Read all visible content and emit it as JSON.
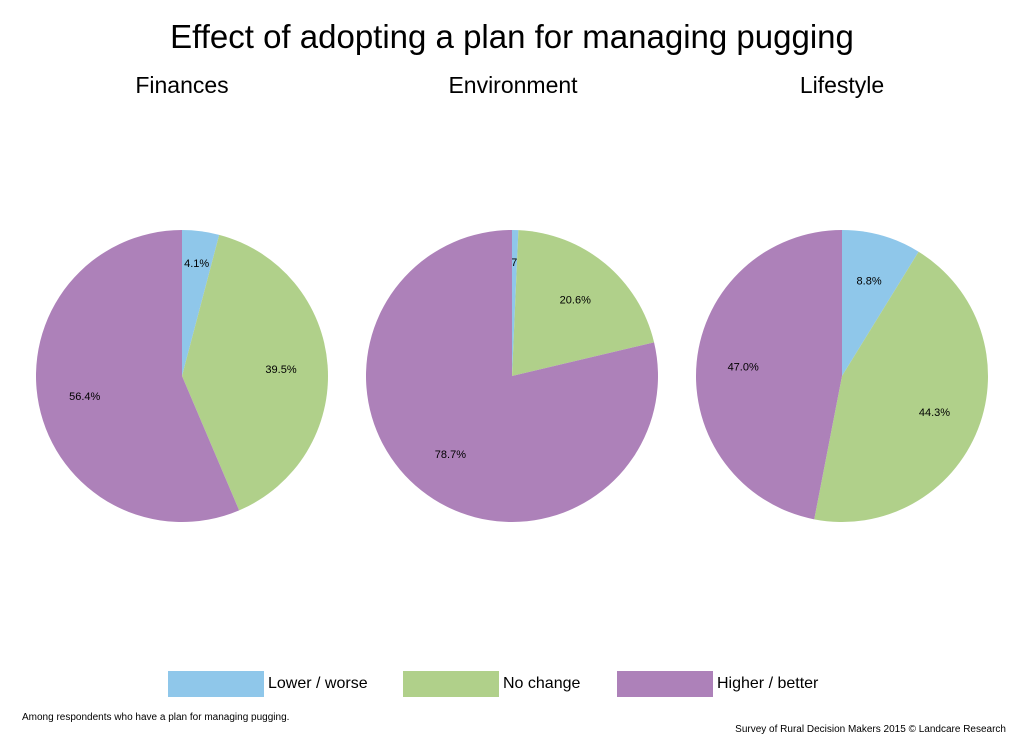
{
  "title": "Effect of adopting a plan for managing pugging",
  "footnote": "Among respondents who have a plan for managing pugging.",
  "source": "Survey of Rural Decision Makers 2015 © Landcare Research",
  "chart_data": [
    {
      "type": "pie",
      "title": "Finances",
      "categories": [
        "Lower / worse",
        "No change",
        "Higher / better"
      ],
      "values": [
        4.1,
        39.5,
        56.4
      ],
      "labels": [
        "4.1%",
        "39.5%",
        "56.4%"
      ],
      "colors": [
        "#8fc7ea",
        "#b0d08a",
        "#ad81b9"
      ]
    },
    {
      "type": "pie",
      "title": "Environment",
      "categories": [
        "Lower / worse",
        "No change",
        "Higher / better"
      ],
      "values": [
        0.7,
        20.6,
        78.7
      ],
      "labels": [
        "0.7%",
        "20.6%",
        "78.7%"
      ],
      "colors": [
        "#8fc7ea",
        "#b0d08a",
        "#ad81b9"
      ]
    },
    {
      "type": "pie",
      "title": "Lifestyle",
      "categories": [
        "Lower / worse",
        "No change",
        "Higher / better"
      ],
      "values": [
        8.8,
        44.3,
        47.0
      ],
      "labels": [
        "8.8%",
        "44.3%",
        "47.0%"
      ],
      "colors": [
        "#8fc7ea",
        "#b0d08a",
        "#ad81b9"
      ]
    }
  ],
  "legend": [
    {
      "label": "Lower / worse",
      "color": "#8fc7ea"
    },
    {
      "label": "No change",
      "color": "#b0d08a"
    },
    {
      "label": "Higher / better",
      "color": "#ad81b9"
    }
  ]
}
